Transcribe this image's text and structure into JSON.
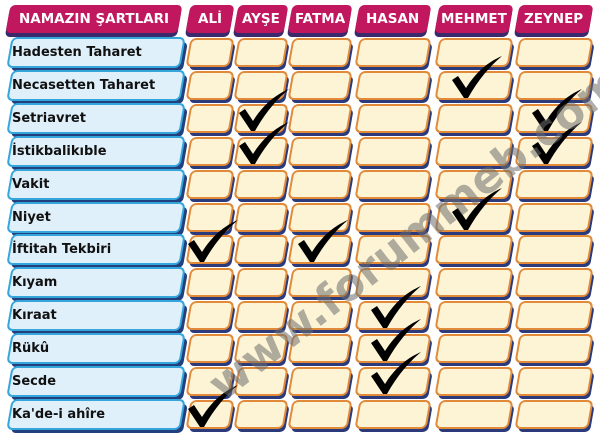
{
  "header": {
    "title": "NAMAZIN ŞARTLARI",
    "columns": [
      "ALİ",
      "AYŞE",
      "FATMA",
      "HASAN",
      "MEHMET",
      "ZEYNEP"
    ]
  },
  "rows": [
    {
      "label": "Hadesten Taharet",
      "checked": []
    },
    {
      "label": "Necasetten Taharet",
      "checked": [
        "MEHMET"
      ]
    },
    {
      "label": "Setriavret",
      "checked": [
        "AYŞE",
        "ZEYNEP"
      ]
    },
    {
      "label": "İstikbalikıble",
      "checked": [
        "AYŞE",
        "ZEYNEP"
      ]
    },
    {
      "label": "Vakit",
      "checked": []
    },
    {
      "label": "Niyet",
      "checked": [
        "MEHMET"
      ]
    },
    {
      "label": "İftitah Tekbiri",
      "checked": [
        "ALİ",
        "FATMA"
      ]
    },
    {
      "label": "Kıyam",
      "checked": []
    },
    {
      "label": "Kıraat",
      "checked": [
        "HASAN"
      ]
    },
    {
      "label": "Rükû",
      "checked": [
        "HASAN"
      ]
    },
    {
      "label": "Secde",
      "checked": [
        "HASAN"
      ]
    },
    {
      "label": "Ka'de-i ahîre",
      "checked": [
        "ALİ"
      ]
    }
  ],
  "watermark": "www.forummeb.com",
  "colors": {
    "header": "#c0175f",
    "label_fill": "#dff0fb",
    "label_border": "#35a6dc",
    "cell_fill": "#fdf4d6",
    "cell_border": "#e08a3a"
  }
}
